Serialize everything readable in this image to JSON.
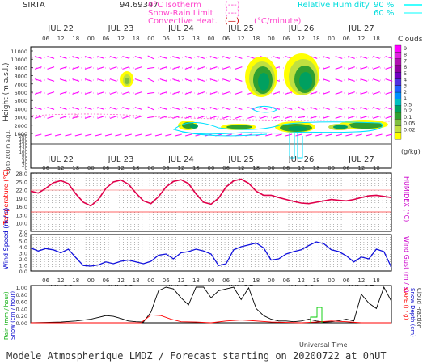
{
  "header": {
    "site": "SIRTA",
    "coord": "94.69347",
    "legend_left": [
      "0°C Isotherm",
      "Snow-Rain Limit",
      "Convective Heat."
    ],
    "legend_left_symbols": [
      "(---)",
      "(---)",
      "(—)"
    ],
    "legend_unit": "(°C/minute)",
    "rh_label": "Relative Humidity",
    "rh_values": [
      "90 %",
      "60 %"
    ]
  },
  "days": [
    "JUL 22",
    "JUL 23",
    "JUL 24",
    "JUL 25",
    "JUL 26",
    "JUL 27"
  ],
  "hours": [
    "06",
    "12",
    "18",
    "00"
  ],
  "hour_ticks": [
    "06",
    "12",
    "18",
    "00",
    "06",
    "12",
    "18",
    "00",
    "06",
    "12",
    "18",
    "00",
    "06",
    "12",
    "18",
    "00",
    "06",
    "12",
    "18",
    "00",
    "06",
    "12",
    "18"
  ],
  "panel1": {
    "ylabel": "Height (m a.s.l.)",
    "ylabel_lower": "Up to 200 m a.g.l.",
    "yticks_upper": [
      "11000",
      "10000",
      "9000",
      "8000",
      "7000",
      "6000",
      "5000",
      "4000",
      "3000",
      "2000",
      "1000"
    ],
    "yticks_lower": [
      "200",
      "180",
      "160",
      "140",
      "120",
      "100",
      "80",
      "60",
      "40",
      "20",
      "0"
    ],
    "colorbar_title": "Clouds",
    "colorbar_unit": "(g/kg)",
    "colorbar_ticks": [
      "9",
      "8",
      "7",
      "6",
      "5",
      "4",
      "3",
      "2",
      "1",
      "0.5",
      "0.2",
      "0.1",
      "0.05",
      "0.02"
    ],
    "colorbar_colors": [
      "#ff00ff",
      "#e020e0",
      "#b010b0",
      "#9000a0",
      "#7000c0",
      "#5030e0",
      "#2060ff",
      "#0090ff",
      "#00c0c0",
      "#00a060",
      "#30a030",
      "#80c040",
      "#c0e040",
      "#ffff00"
    ],
    "isotherm_label": "0"
  },
  "panel2": {
    "ylabel": "Temperature (°C)",
    "ylabel_right": "HUMIDEX (°C)",
    "yticks": [
      "28.0",
      "25.0",
      "22.0",
      "19.0",
      "16.0",
      "13.0",
      "10.0",
      "7.0"
    ],
    "ylim": [
      7,
      28
    ]
  },
  "panel3": {
    "ylabel": "Wind Speed (m / s)",
    "ylabel_right": "Wind Gust (m / s)",
    "yticks": [
      "6.0",
      "5.0",
      "4.0",
      "3.0",
      "2.0",
      "1.0",
      "0.0"
    ],
    "ylim": [
      0,
      6
    ]
  },
  "panel4": {
    "ylabel_left": [
      "Rain (mm / hour)",
      "Snow (cm / hour)"
    ],
    "ylabel_right": [
      "CAPE (J / g)",
      "Snow Depth (cm)",
      "Cloud Fraction"
    ],
    "yticks": [
      "1.00",
      "0.80",
      "0.60",
      "0.40",
      "0.20",
      "0.00"
    ],
    "ylim": [
      0,
      1
    ],
    "xlabel": "Universal Time"
  },
  "footer": "Modele Atmospherique LMDZ / Forecast starting on 20200722 at 0hUT",
  "colors": {
    "magenta": "#ff00ff",
    "cyan": "#00ffff",
    "red": "#ff0000",
    "blue": "#0000ff",
    "green": "#00c000",
    "black": "#000000",
    "purple_text": "#cc00cc",
    "temp_line": "#e0004a"
  },
  "chart_data": [
    {
      "type": "line",
      "name": "temperature",
      "x_hours": [
        0,
        3,
        6,
        9,
        12,
        15,
        18,
        21,
        24,
        27,
        30,
        33,
        36,
        39,
        42,
        45,
        48,
        51,
        54,
        57,
        60,
        63,
        66,
        69,
        72,
        75,
        78,
        81,
        84,
        87,
        90,
        93,
        96,
        99,
        102,
        105,
        108,
        111,
        114,
        117,
        120,
        123,
        126,
        129,
        132,
        135,
        138,
        141,
        144
      ],
      "values": [
        21.5,
        20.8,
        22.5,
        24.5,
        25.3,
        24.2,
        20.5,
        17.5,
        16.2,
        18.5,
        22.5,
        24.8,
        25.5,
        24.0,
        20.8,
        18.0,
        17.0,
        19.5,
        23.0,
        25.0,
        25.6,
        24.2,
        20.5,
        17.5,
        16.8,
        19.0,
        23.0,
        25.2,
        25.8,
        24.3,
        21.5,
        20.0,
        20.0,
        19.2,
        18.5,
        17.8,
        17.2,
        17.0,
        17.5,
        18.0,
        18.5,
        18.2,
        18.0,
        18.5,
        19.2,
        19.8,
        20.0,
        19.6,
        19.2
      ],
      "ylim": [
        7,
        28
      ]
    },
    {
      "type": "line",
      "name": "wind_speed",
      "x_hours": [
        0,
        3,
        6,
        9,
        12,
        15,
        18,
        21,
        24,
        27,
        30,
        33,
        36,
        39,
        42,
        45,
        48,
        51,
        54,
        57,
        60,
        63,
        66,
        69,
        72,
        75,
        78,
        81,
        84,
        87,
        90,
        93,
        96,
        99,
        102,
        105,
        108,
        111,
        114,
        117,
        120,
        123,
        126,
        129,
        132,
        135,
        138,
        141,
        144
      ],
      "values": [
        3.8,
        3.3,
        3.7,
        3.5,
        3.0,
        3.6,
        2.2,
        0.9,
        0.8,
        1.0,
        1.5,
        1.2,
        1.6,
        1.8,
        1.5,
        1.2,
        1.6,
        2.6,
        2.8,
        2.0,
        3.0,
        3.2,
        3.6,
        3.3,
        2.8,
        0.9,
        1.2,
        3.5,
        4.0,
        4.3,
        4.6,
        3.8,
        1.8,
        2.0,
        2.8,
        3.2,
        3.5,
        4.2,
        4.8,
        4.5,
        3.5,
        3.2,
        2.5,
        1.5,
        2.3,
        2.0,
        3.6,
        3.2,
        0.6
      ],
      "ylim": [
        0,
        6
      ]
    },
    {
      "type": "line",
      "name": "cloud_fraction",
      "x_hours": [
        0,
        6,
        12,
        18,
        24,
        27,
        30,
        33,
        36,
        39,
        42,
        45,
        48,
        51,
        54,
        57,
        60,
        63,
        66,
        69,
        72,
        75,
        78,
        81,
        84,
        87,
        90,
        93,
        96,
        99,
        102,
        105,
        108,
        111,
        114,
        117,
        120,
        123,
        126,
        129,
        132,
        135,
        138,
        141,
        144
      ],
      "values": [
        0.0,
        0.01,
        0.02,
        0.05,
        0.1,
        0.15,
        0.2,
        0.18,
        0.12,
        0.05,
        0.03,
        0.02,
        0.3,
        0.9,
        1.0,
        0.95,
        0.7,
        0.5,
        1.0,
        1.0,
        0.7,
        0.9,
        0.95,
        1.0,
        0.65,
        0.98,
        0.4,
        0.2,
        0.1,
        0.05,
        0.05,
        0.03,
        0.05,
        0.1,
        0.05,
        0.02,
        0.03,
        0.06,
        0.1,
        0.05,
        0.8,
        0.55,
        0.4,
        1.0,
        0.6
      ],
      "ylim": [
        0,
        1
      ]
    },
    {
      "type": "line",
      "name": "rain",
      "x_hours": [
        0,
        36,
        44,
        48,
        52,
        56,
        60,
        66,
        72,
        78,
        84,
        96,
        102,
        108,
        114,
        120,
        126,
        132,
        144
      ],
      "values": [
        0,
        0,
        0,
        0.22,
        0.2,
        0.1,
        0.03,
        0.02,
        0.0,
        0.05,
        0.08,
        0.02,
        0.01,
        0.0,
        0.02,
        0.05,
        0.03,
        0.0,
        0.0
      ],
      "ylim": [
        0,
        1
      ]
    }
  ]
}
